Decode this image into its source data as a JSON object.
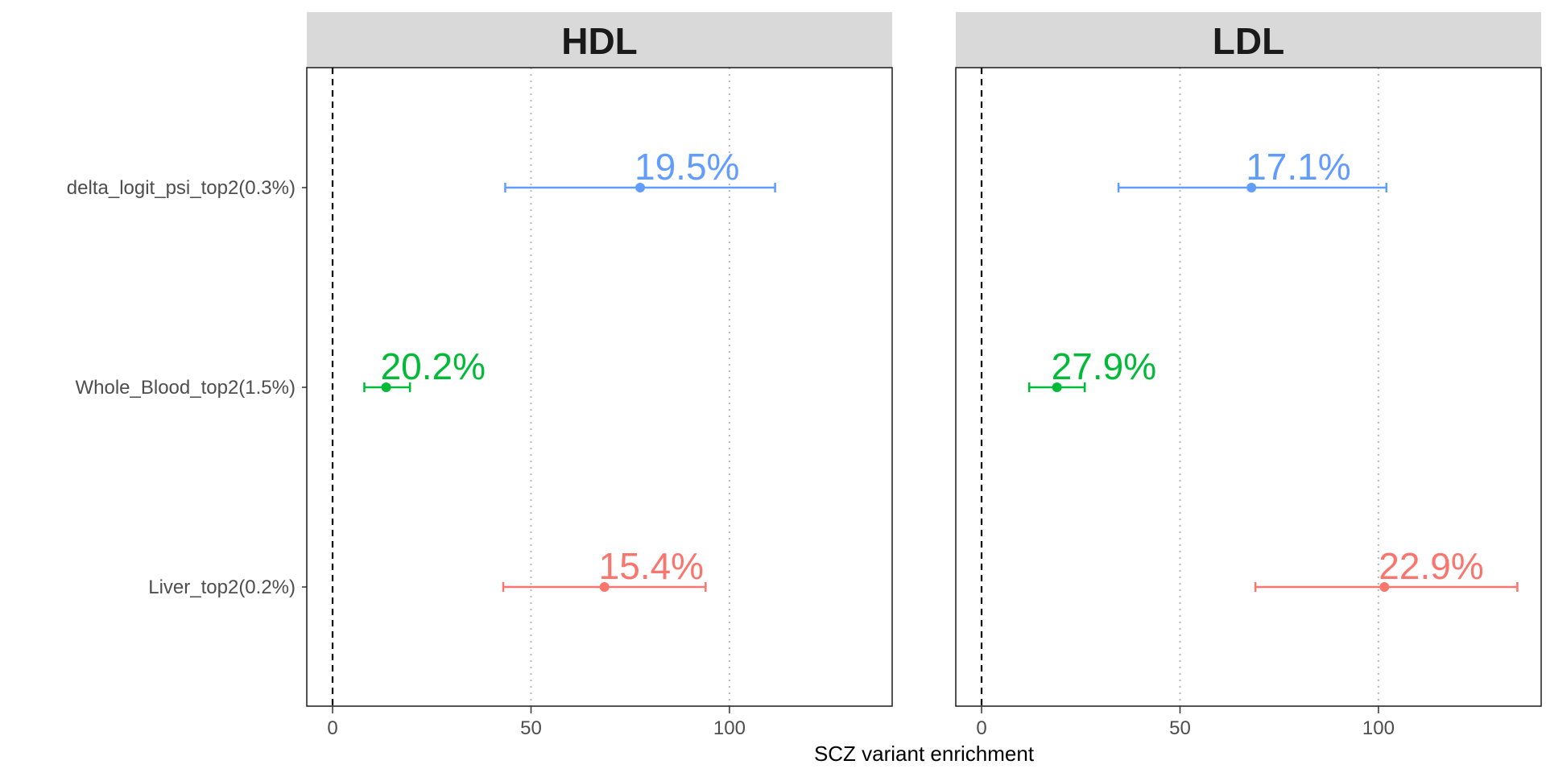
{
  "chart_data": {
    "type": "scatter",
    "xlabel": "SCZ variant enrichment",
    "ylabel": "",
    "xlim": [
      -6.5,
      141
    ],
    "x_ticks": [
      0,
      50,
      100
    ],
    "reference_line": 0,
    "grid": "dotted vertical at 50 and 100",
    "legend": "none",
    "categories": [
      "delta_logit_psi_top2(0.3%)",
      "Whole_Blood_top2(1.5%)",
      "Liver_top2(0.2%)"
    ],
    "category_colors": [
      "#619CFF",
      "#00BA38",
      "#F8766D"
    ],
    "panels": [
      {
        "title": "HDL",
        "points": [
          {
            "category": "delta_logit_psi_top2(0.3%)",
            "estimate": 77.5,
            "lower": 43.5,
            "upper": 111.5,
            "label": "19.5%"
          },
          {
            "category": "Whole_Blood_top2(1.5%)",
            "estimate": 13.5,
            "lower": 8,
            "upper": 19.5,
            "label": "20.2%"
          },
          {
            "category": "Liver_top2(0.2%)",
            "estimate": 68.5,
            "lower": 43,
            "upper": 94,
            "label": "15.4%"
          }
        ]
      },
      {
        "title": "LDL",
        "points": [
          {
            "category": "delta_logit_psi_top2(0.3%)",
            "estimate": 68,
            "lower": 34.5,
            "upper": 102,
            "label": "17.1%"
          },
          {
            "category": "Whole_Blood_top2(1.5%)",
            "estimate": 19,
            "lower": 12,
            "upper": 26,
            "label": "27.9%"
          },
          {
            "category": "Liver_top2(0.2%)",
            "estimate": 101.5,
            "lower": 69,
            "upper": 135,
            "label": "22.9%"
          }
        ]
      }
    ]
  }
}
